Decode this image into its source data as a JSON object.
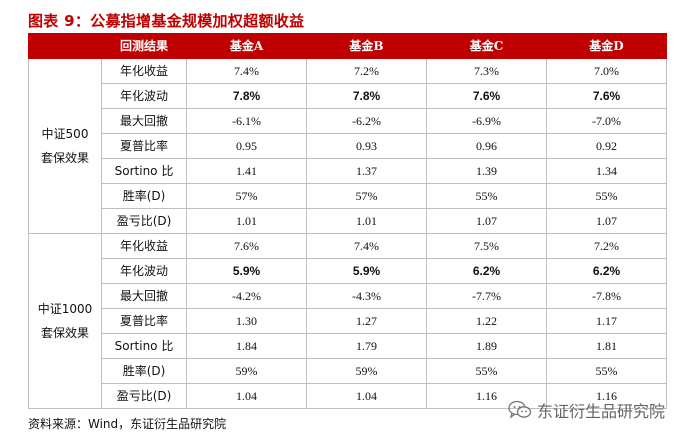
{
  "title": "图表 9：公募指增基金规模加权超额收益",
  "header": {
    "corner": "",
    "metric": "回测结果",
    "funds": [
      "基金A",
      "基金B",
      "基金C",
      "基金D"
    ]
  },
  "groups": [
    {
      "name_line1": "中证500",
      "name_line2": "套保效果",
      "rows": [
        {
          "metric": "年化收益",
          "values": [
            "7.4%",
            "7.2%",
            "7.3%",
            "7.0%"
          ],
          "bold": false
        },
        {
          "metric": "年化波动",
          "values": [
            "7.8%",
            "7.8%",
            "7.6%",
            "7.6%"
          ],
          "bold": true
        },
        {
          "metric": "最大回撤",
          "values": [
            "-6.1%",
            "-6.2%",
            "-6.9%",
            "-7.0%"
          ],
          "bold": false
        },
        {
          "metric": "夏普比率",
          "values": [
            "0.95",
            "0.93",
            "0.96",
            "0.92"
          ],
          "bold": false
        },
        {
          "metric": "Sortino 比",
          "values": [
            "1.41",
            "1.37",
            "1.39",
            "1.34"
          ],
          "bold": false
        },
        {
          "metric": "胜率(D)",
          "values": [
            "57%",
            "57%",
            "55%",
            "55%"
          ],
          "bold": false
        },
        {
          "metric": "盈亏比(D)",
          "values": [
            "1.01",
            "1.01",
            "1.07",
            "1.07"
          ],
          "bold": false
        }
      ]
    },
    {
      "name_line1": "中证1000",
      "name_line2": "套保效果",
      "rows": [
        {
          "metric": "年化收益",
          "values": [
            "7.6%",
            "7.4%",
            "7.5%",
            "7.2%"
          ],
          "bold": false
        },
        {
          "metric": "年化波动",
          "values": [
            "5.9%",
            "5.9%",
            "6.2%",
            "6.2%"
          ],
          "bold": true
        },
        {
          "metric": "最大回撤",
          "values": [
            "-4.2%",
            "-4.3%",
            "-7.7%",
            "-7.8%"
          ],
          "bold": false
        },
        {
          "metric": "夏普比率",
          "values": [
            "1.30",
            "1.27",
            "1.22",
            "1.17"
          ],
          "bold": false
        },
        {
          "metric": "Sortino 比",
          "values": [
            "1.84",
            "1.79",
            "1.89",
            "1.81"
          ],
          "bold": false
        },
        {
          "metric": "胜率(D)",
          "values": [
            "59%",
            "59%",
            "55%",
            "55%"
          ],
          "bold": false
        },
        {
          "metric": "盈亏比(D)",
          "values": [
            "1.04",
            "1.04",
            "1.16",
            "1.16"
          ],
          "bold": false
        }
      ]
    }
  ],
  "source": "资料来源：Wind，东证衍生品研究院",
  "watermark": {
    "icon": "wechat-icon",
    "text": "东证衍生品研究院"
  },
  "colors": {
    "accent": "#c00000",
    "header_text": "#ffffff",
    "border": "#bfbfbf"
  }
}
